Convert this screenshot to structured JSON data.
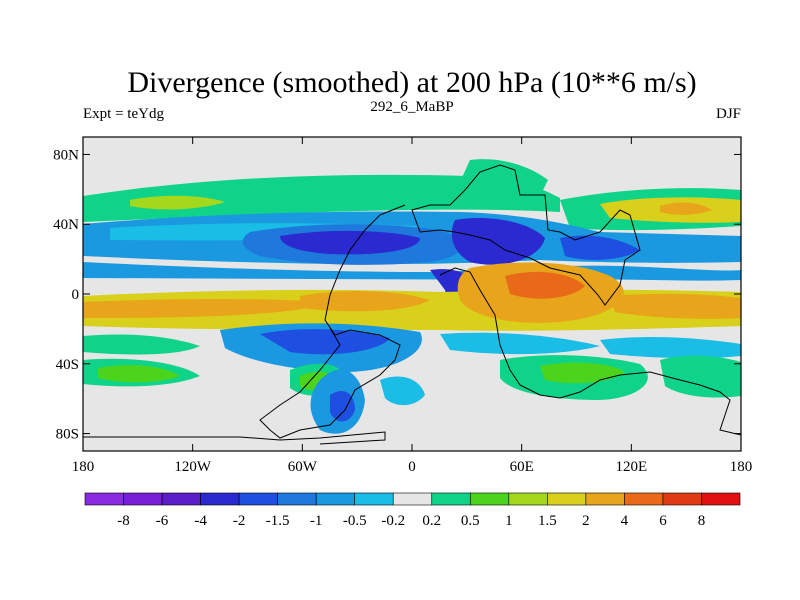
{
  "chart_data": {
    "type": "heatmap",
    "title": "Divergence (smoothed) at 200 hPa (10**6 m/s)",
    "left_label": "Expt = teYdg",
    "center_label": "292_6_MaBP",
    "right_label": "DJF",
    "x_ticks": [
      {
        "value": -180,
        "label": "180"
      },
      {
        "value": -120,
        "label": "120W"
      },
      {
        "value": -60,
        "label": "60W"
      },
      {
        "value": 0,
        "label": "0"
      },
      {
        "value": 60,
        "label": "60E"
      },
      {
        "value": 120,
        "label": "120E"
      },
      {
        "value": 180,
        "label": "180"
      }
    ],
    "y_ticks": [
      {
        "value": 80,
        "label": "80N"
      },
      {
        "value": 40,
        "label": "40N"
      },
      {
        "value": 0,
        "label": "0"
      },
      {
        "value": -40,
        "label": "40S"
      },
      {
        "value": -80,
        "label": "80S"
      }
    ],
    "xlim": [
      -180,
      180
    ],
    "ylim": [
      -90,
      90
    ],
    "contour_levels": [
      "-8",
      "-6",
      "-4",
      "-2",
      "-1.5",
      "-1",
      "-0.5",
      "-0.2",
      "0.2",
      "0.5",
      "1",
      "1.5",
      "2",
      "4",
      "6",
      "8"
    ],
    "colorbar_colors": [
      "#8a2be2",
      "#7a1fd8",
      "#5a1ec8",
      "#2a2ad0",
      "#1f4fe0",
      "#1f78dc",
      "#1a98e0",
      "#19bde6",
      "#e6e6e6",
      "#10d38a",
      "#4cd41c",
      "#a4d81c",
      "#d8d01a",
      "#e8a41a",
      "#e86a18",
      "#e03a14",
      "#e01010"
    ]
  }
}
